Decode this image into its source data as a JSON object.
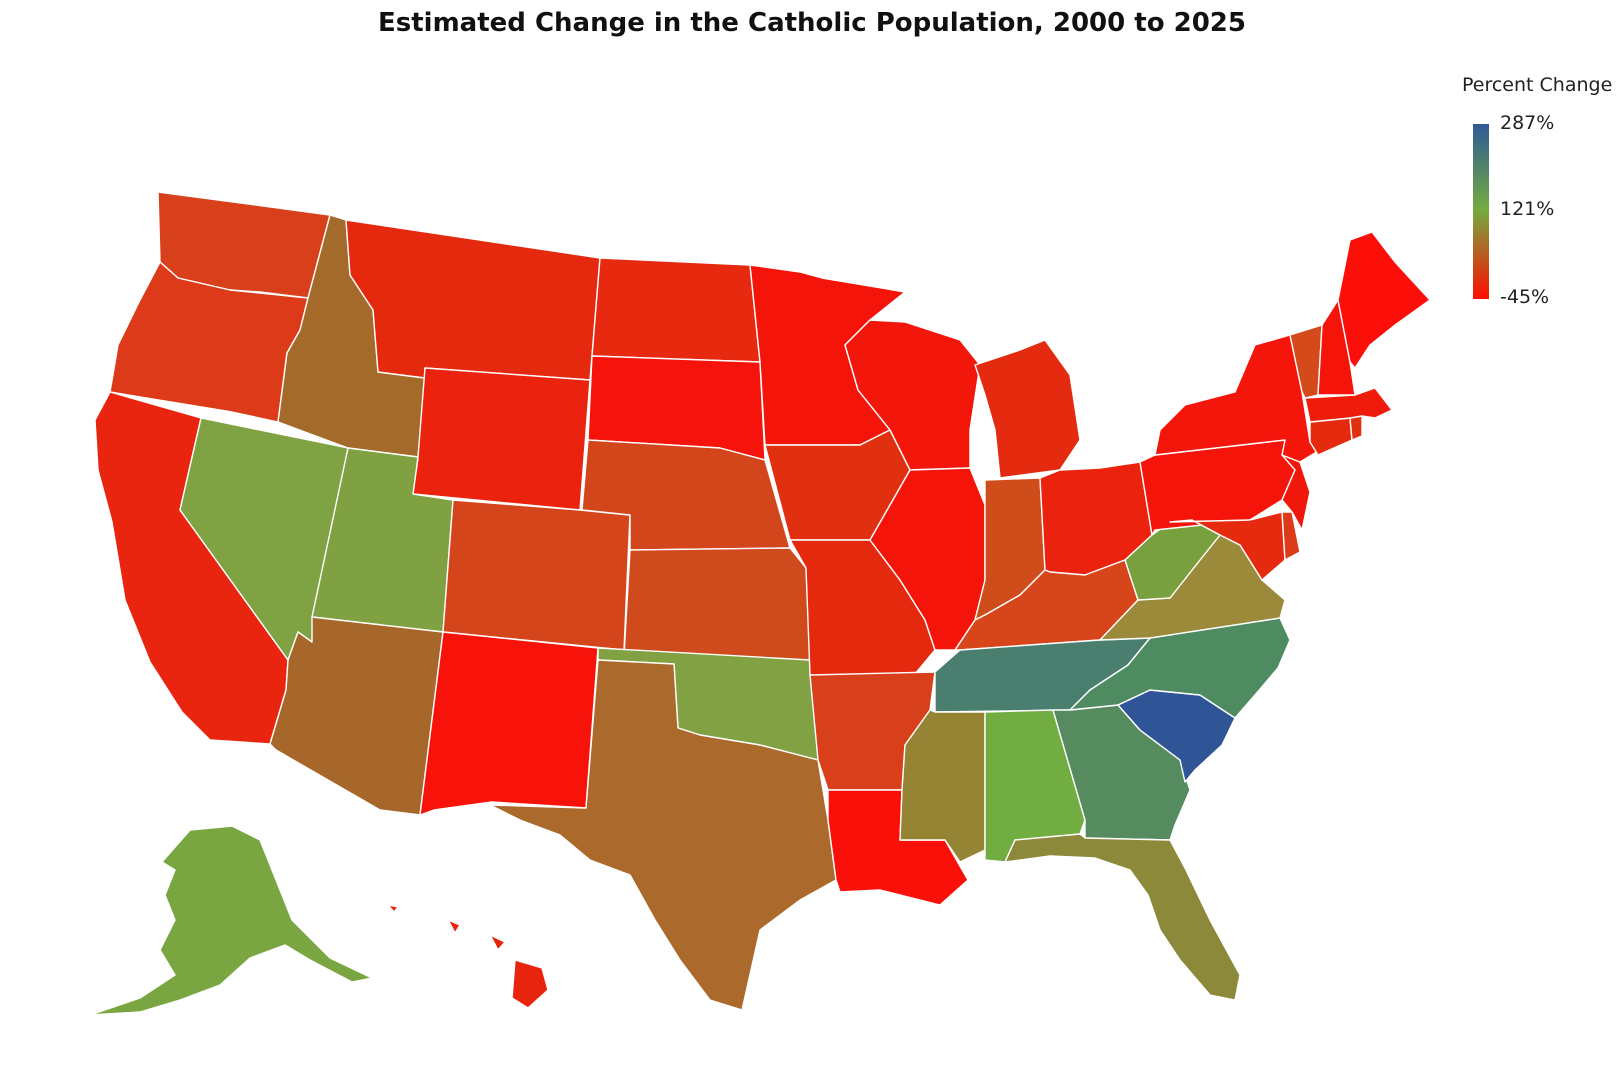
{
  "title": "Estimated Change in the Catholic Population, 2000 to 2025",
  "legend": {
    "title": "Percent Change",
    "max_label": "287%",
    "mid_label": "121%",
    "min_label": "-45%",
    "min_value": -45,
    "mid_value": 121,
    "max_value": 287,
    "colors": {
      "low": "#ff0d00",
      "mid": "#74ab40",
      "high": "#2e5b96"
    }
  },
  "states": {
    "WA": "#d7401a",
    "OR": "#dc3a18",
    "CA": "#e9240f",
    "NV": "#7fa342",
    "ID": "#a36a2a",
    "MT": "#e5290f",
    "WY": "#ea220e",
    "UT": "#80a142",
    "AZ": "#a8672a",
    "CO": "#d5451b",
    "NM": "#f7120a",
    "ND": "#e6290f",
    "SD": "#f5130b",
    "NE": "#d3461b",
    "KS": "#cf4a1c",
    "OK": "#82a142",
    "TX": "#ab6a2c",
    "MN": "#f4140a",
    "IA": "#e0300f",
    "MO": "#e4290f",
    "AR": "#d7401a",
    "LA": "#fb0f09",
    "WI": "#f3160b",
    "IL": "#f4140a",
    "MI": "#e42b0f",
    "IN": "#cf4d1b",
    "OH": "#ea220e",
    "KY": "#d7461a",
    "TN": "#4a7f6f",
    "MS": "#958434",
    "AL": "#72ad42",
    "GA": "#558b5e",
    "FL": "#8c8a3a",
    "SC": "#2f5597",
    "NC": "#4f8b61",
    "VA": "#9a8a3a",
    "WV": "#78a03e",
    "PA": "#f4140a",
    "NY": "#f4160b",
    "VT": "#d44a1b",
    "NH": "#f4140a",
    "ME": "#fc0f09",
    "MA": "#ef1b0b",
    "CT": "#e52a10",
    "RI": "#e0300f",
    "NJ": "#f0180b",
    "DE": "#dc3a18",
    "MD": "#e62a0f",
    "AK": "#7aa642",
    "HI": "#e8240f"
  }
}
